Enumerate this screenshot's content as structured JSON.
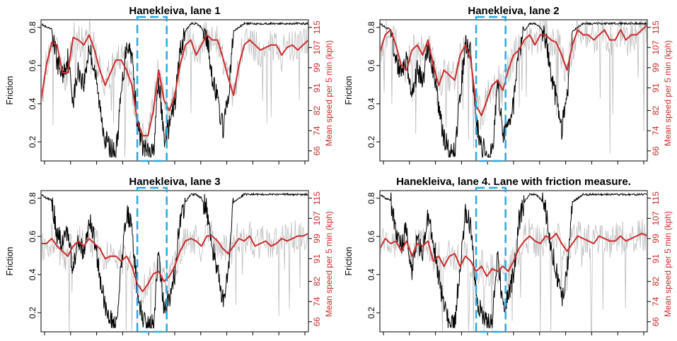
{
  "colors": {
    "friction": "#000000",
    "speed_raw": "#bdbdbd",
    "speed_smooth": "#cc2a2a",
    "highlight_box": "#29a9e0"
  },
  "chart_data": [
    {
      "type": "line",
      "title": "Hanekleiva, lane 1",
      "ylabel_left": "Friction",
      "ylabel_right": "Mean speed per 5 min (kph)",
      "y_left_ticks": [
        "0.2",
        "0.4",
        "0.6",
        "0.8"
      ],
      "y_right_ticks": [
        "66",
        "74",
        "82",
        "91",
        "99",
        "107",
        "115"
      ],
      "ylim_left": [
        0.1,
        0.84
      ],
      "ylim_right": [
        62,
        118
      ],
      "xlim": [
        0,
        100
      ],
      "highlight_x": [
        36,
        47
      ],
      "series": [
        {
          "key": "friction",
          "x": [
            0,
            2,
            4,
            6,
            8,
            10,
            12,
            14,
            16,
            18,
            20,
            22,
            24,
            26,
            28,
            30,
            32,
            34,
            36,
            38,
            40,
            42,
            44,
            46,
            48,
            50,
            52,
            54,
            56,
            58,
            60,
            62,
            64,
            66,
            68,
            70,
            72,
            74,
            76,
            78,
            80,
            82,
            84,
            86,
            88,
            90,
            92,
            94,
            96,
            98,
            100
          ],
          "y": [
            0.82,
            0.8,
            0.79,
            0.62,
            0.55,
            0.64,
            0.42,
            0.58,
            0.5,
            0.7,
            0.58,
            0.38,
            0.22,
            0.16,
            0.14,
            0.45,
            0.72,
            0.66,
            0.3,
            0.18,
            0.14,
            0.14,
            0.52,
            0.22,
            0.28,
            0.4,
            0.68,
            0.78,
            0.82,
            0.82,
            0.8,
            0.74,
            0.55,
            0.42,
            0.27,
            0.42,
            0.78,
            0.8,
            0.82,
            0.82,
            0.82,
            0.82,
            0.82,
            0.82,
            0.82,
            0.82,
            0.82,
            0.82,
            0.82,
            0.82,
            0.82
          ]
        },
        {
          "key": "speed_smooth",
          "x": [
            0,
            2,
            4,
            6,
            8,
            10,
            12,
            14,
            16,
            18,
            20,
            22,
            24,
            26,
            28,
            30,
            32,
            34,
            36,
            38,
            40,
            42,
            44,
            46,
            48,
            50,
            52,
            54,
            56,
            58,
            60,
            62,
            64,
            66,
            68,
            70,
            72,
            74,
            76,
            78,
            80,
            82,
            84,
            86,
            88,
            90,
            92,
            94,
            96,
            98,
            100
          ],
          "y": [
            86,
            100,
            109,
            108,
            97,
            97,
            111,
            110,
            108,
            112,
            106,
            98,
            92,
            97,
            102,
            102,
            98,
            92,
            78,
            72,
            72,
            82,
            98,
            86,
            82,
            88,
            100,
            108,
            110,
            104,
            108,
            112,
            110,
            110,
            103,
            95,
            88,
            100,
            108,
            110,
            108,
            106,
            107,
            108,
            108,
            104,
            107,
            108,
            106,
            108,
            110
          ]
        }
      ]
    },
    {
      "type": "line",
      "title": "Hanekleiva, lane 2",
      "ylabel_left": "Friction",
      "ylabel_right": "Mean speed per 5 min (kph)",
      "y_left_ticks": [
        "0.2",
        "0.4",
        "0.6",
        "0.8"
      ],
      "y_right_ticks": [
        "66",
        "74",
        "82",
        "91",
        "99",
        "107",
        "115"
      ],
      "ylim_left": [
        0.1,
        0.84
      ],
      "ylim_right": [
        62,
        118
      ],
      "xlim": [
        0,
        100
      ],
      "highlight_x": [
        36,
        47
      ],
      "series": [
        {
          "key": "friction",
          "x": [
            0,
            2,
            4,
            6,
            8,
            10,
            12,
            14,
            16,
            18,
            20,
            22,
            24,
            26,
            28,
            30,
            32,
            34,
            36,
            38,
            40,
            42,
            44,
            46,
            48,
            50,
            52,
            54,
            56,
            58,
            60,
            62,
            64,
            66,
            68,
            70,
            72,
            74,
            76,
            78,
            80,
            82,
            84,
            86,
            88,
            90,
            92,
            94,
            96,
            98,
            100
          ],
          "y": [
            0.82,
            0.8,
            0.79,
            0.62,
            0.55,
            0.64,
            0.42,
            0.58,
            0.5,
            0.7,
            0.58,
            0.38,
            0.22,
            0.16,
            0.14,
            0.45,
            0.72,
            0.66,
            0.3,
            0.18,
            0.14,
            0.14,
            0.52,
            0.22,
            0.28,
            0.4,
            0.68,
            0.78,
            0.82,
            0.82,
            0.8,
            0.74,
            0.55,
            0.42,
            0.27,
            0.42,
            0.78,
            0.8,
            0.82,
            0.82,
            0.82,
            0.82,
            0.82,
            0.82,
            0.82,
            0.82,
            0.82,
            0.82,
            0.82,
            0.82,
            0.82
          ]
        },
        {
          "key": "speed_smooth",
          "x": [
            0,
            2,
            4,
            6,
            8,
            10,
            12,
            14,
            16,
            18,
            20,
            22,
            24,
            26,
            28,
            30,
            32,
            34,
            36,
            38,
            40,
            42,
            44,
            46,
            48,
            50,
            52,
            54,
            56,
            58,
            60,
            62,
            64,
            66,
            68,
            70,
            72,
            74,
            76,
            78,
            80,
            82,
            84,
            86,
            88,
            90,
            92,
            94,
            96,
            98,
            100
          ],
          "y": [
            105,
            112,
            114,
            108,
            100,
            98,
            106,
            108,
            104,
            110,
            100,
            92,
            98,
            96,
            94,
            104,
            108,
            102,
            84,
            80,
            86,
            92,
            94,
            90,
            98,
            104,
            106,
            110,
            112,
            108,
            112,
            112,
            110,
            109,
            104,
            98,
            108,
            114,
            112,
            112,
            110,
            112,
            114,
            110,
            110,
            114,
            110,
            112,
            112,
            114,
            116
          ]
        }
      ]
    },
    {
      "type": "line",
      "title": "Hanekleiva, lane 3",
      "ylabel_left": "Friction",
      "ylabel_right": "Mean speed per 5 min (kph)",
      "y_left_ticks": [
        "0.2",
        "0.4",
        "0.6",
        "0.8"
      ],
      "y_right_ticks": [
        "66",
        "74",
        "82",
        "91",
        "99",
        "107",
        "115"
      ],
      "ylim_left": [
        0.1,
        0.84
      ],
      "ylim_right": [
        62,
        118
      ],
      "xlim": [
        0,
        100
      ],
      "highlight_x": [
        36,
        47
      ],
      "series": [
        {
          "key": "friction",
          "x": [
            0,
            2,
            4,
            6,
            8,
            10,
            12,
            14,
            16,
            18,
            20,
            22,
            24,
            26,
            28,
            30,
            32,
            34,
            36,
            38,
            40,
            42,
            44,
            46,
            48,
            50,
            52,
            54,
            56,
            58,
            60,
            62,
            64,
            66,
            68,
            70,
            72,
            74,
            76,
            78,
            80,
            82,
            84,
            86,
            88,
            90,
            92,
            94,
            96,
            98,
            100
          ],
          "y": [
            0.82,
            0.8,
            0.79,
            0.62,
            0.55,
            0.64,
            0.42,
            0.58,
            0.5,
            0.7,
            0.58,
            0.38,
            0.22,
            0.16,
            0.14,
            0.45,
            0.72,
            0.66,
            0.3,
            0.18,
            0.14,
            0.14,
            0.52,
            0.22,
            0.28,
            0.4,
            0.68,
            0.78,
            0.82,
            0.82,
            0.8,
            0.74,
            0.55,
            0.42,
            0.27,
            0.42,
            0.78,
            0.8,
            0.82,
            0.82,
            0.82,
            0.82,
            0.82,
            0.82,
            0.82,
            0.82,
            0.82,
            0.82,
            0.82,
            0.82,
            0.82
          ]
        },
        {
          "key": "speed_smooth",
          "x": [
            0,
            2,
            4,
            6,
            8,
            10,
            12,
            14,
            16,
            18,
            20,
            22,
            24,
            26,
            28,
            30,
            32,
            34,
            36,
            38,
            40,
            42,
            44,
            46,
            48,
            50,
            52,
            54,
            56,
            58,
            60,
            62,
            64,
            66,
            68,
            70,
            72,
            74,
            76,
            78,
            80,
            82,
            84,
            86,
            88,
            90,
            92,
            94,
            96,
            98,
            100
          ],
          "y": [
            97,
            97,
            99,
            96,
            94,
            92,
            96,
            98,
            96,
            99,
            97,
            95,
            91,
            92,
            92,
            90,
            92,
            88,
            81,
            78,
            81,
            85,
            86,
            82,
            84,
            88,
            94,
            98,
            99,
            98,
            96,
            100,
            100,
            98,
            95,
            93,
            96,
            99,
            98,
            100,
            96,
            97,
            98,
            96,
            97,
            99,
            98,
            99,
            100,
            100,
            101
          ]
        }
      ]
    },
    {
      "type": "line",
      "title": "Hanekleiva, lane 4. Lane with friction measure.",
      "ylabel_left": "Friction",
      "ylabel_right": "Mean speed per 5 min (kph)",
      "y_left_ticks": [
        "0.2",
        "0.4",
        "0.6",
        "0.8"
      ],
      "y_right_ticks": [
        "66",
        "74",
        "82",
        "91",
        "99",
        "107",
        "115"
      ],
      "ylim_left": [
        0.1,
        0.84
      ],
      "ylim_right": [
        62,
        118
      ],
      "xlim": [
        0,
        100
      ],
      "highlight_x": [
        36,
        47
      ],
      "series": [
        {
          "key": "friction",
          "x": [
            0,
            2,
            4,
            6,
            8,
            10,
            12,
            14,
            16,
            18,
            20,
            22,
            24,
            26,
            28,
            30,
            32,
            34,
            36,
            38,
            40,
            42,
            44,
            46,
            48,
            50,
            52,
            54,
            56,
            58,
            60,
            62,
            64,
            66,
            68,
            70,
            72,
            74,
            76,
            78,
            80,
            82,
            84,
            86,
            88,
            90,
            92,
            94,
            96,
            98,
            100
          ],
          "y": [
            0.82,
            0.8,
            0.79,
            0.62,
            0.55,
            0.64,
            0.42,
            0.58,
            0.5,
            0.7,
            0.58,
            0.38,
            0.22,
            0.16,
            0.14,
            0.45,
            0.72,
            0.66,
            0.3,
            0.18,
            0.14,
            0.14,
            0.52,
            0.22,
            0.28,
            0.4,
            0.68,
            0.78,
            0.82,
            0.82,
            0.8,
            0.74,
            0.55,
            0.42,
            0.27,
            0.42,
            0.78,
            0.8,
            0.82,
            0.82,
            0.82,
            0.82,
            0.82,
            0.82,
            0.82,
            0.82,
            0.82,
            0.82,
            0.82,
            0.82,
            0.82
          ]
        },
        {
          "key": "speed_smooth",
          "x": [
            0,
            2,
            4,
            6,
            8,
            10,
            12,
            14,
            16,
            18,
            20,
            22,
            24,
            26,
            28,
            30,
            32,
            34,
            36,
            38,
            40,
            42,
            44,
            46,
            48,
            50,
            52,
            54,
            56,
            58,
            60,
            62,
            64,
            66,
            68,
            70,
            72,
            74,
            76,
            78,
            80,
            82,
            84,
            86,
            88,
            90,
            92,
            94,
            96,
            98,
            100
          ],
          "y": [
            95,
            99,
            97,
            98,
            94,
            98,
            92,
            97,
            96,
            98,
            90,
            92,
            88,
            92,
            93,
            88,
            92,
            90,
            86,
            88,
            84,
            87,
            86,
            88,
            86,
            90,
            95,
            98,
            100,
            98,
            97,
            100,
            99,
            101,
            97,
            94,
            97,
            100,
            99,
            98,
            97,
            100,
            99,
            98,
            98,
            100,
            98,
            99,
            100,
            101,
            100
          ]
        }
      ]
    }
  ]
}
